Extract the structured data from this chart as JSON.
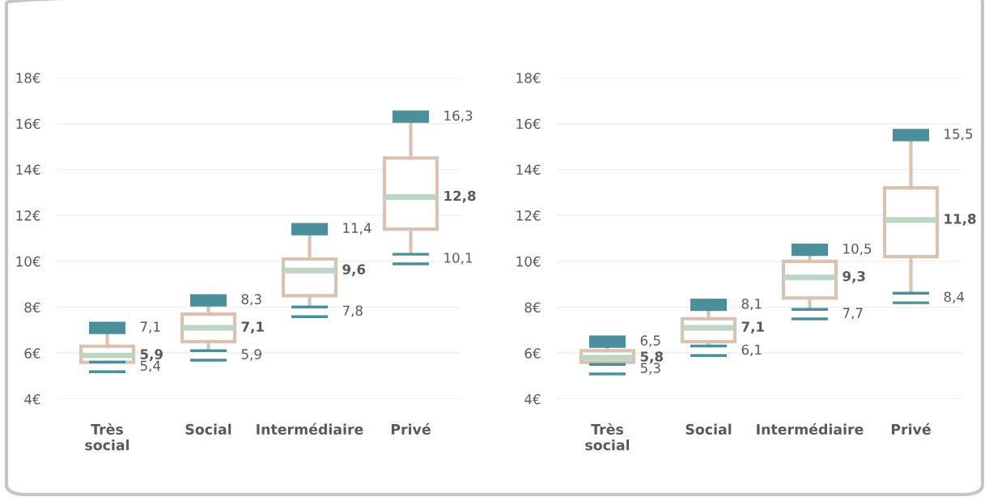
{
  "chart_data": [
    {
      "type": "box",
      "categories": [
        "Très\nsocial",
        "Social",
        "Intermédiaire",
        "Privé"
      ],
      "ylim": [
        4,
        18
      ],
      "yticks": [
        {
          "value": 4,
          "label": "4€"
        },
        {
          "value": 6,
          "label": "6€"
        },
        {
          "value": 8,
          "label": "8€"
        },
        {
          "value": 10,
          "label": "10€"
        },
        {
          "value": 12,
          "label": "12€"
        },
        {
          "value": 14,
          "label": "14€"
        },
        {
          "value": 16,
          "label": "16€"
        },
        {
          "value": 18,
          "label": "18€"
        }
      ],
      "grid": "y",
      "series": [
        {
          "color": "#d9c2b1",
          "boxes": [
            {
              "low": 5.4,
              "q1": 5.6,
              "median": 5.9,
              "q3": 6.3,
              "high": 7.1
            },
            {
              "low": 5.9,
              "q1": 6.5,
              "median": 7.1,
              "q3": 7.7,
              "high": 8.3
            },
            {
              "low": 7.8,
              "q1": 8.5,
              "median": 9.6,
              "q3": 10.1,
              "high": 11.4
            },
            {
              "low": 10.1,
              "q1": 11.4,
              "median": 12.8,
              "q3": 14.5,
              "high": 16.3
            }
          ]
        }
      ],
      "annotations": [
        {
          "text": "7,1",
          "x": "Très\nsocial",
          "y": 7.1
        },
        {
          "text": "5,9",
          "x": "Très\nsocial",
          "y": 5.9
        },
        {
          "text": "5,4",
          "x": "Très\nsocial",
          "y": 5.4
        },
        {
          "text": "8,3",
          "x": "Social",
          "y": 8.3
        },
        {
          "text": "7,1",
          "x": "Social",
          "y": 7.1
        },
        {
          "text": "5,9",
          "x": "Social",
          "y": 5.9
        },
        {
          "text": "11,4",
          "x": "Intermédiaire",
          "y": 11.4
        },
        {
          "text": "9,6",
          "x": "Intermédiaire",
          "y": 9.6
        },
        {
          "text": "7,8",
          "x": "Intermédiaire",
          "y": 7.8
        },
        {
          "text": "16,3",
          "x": "Privé",
          "y": 16.3
        },
        {
          "text": "12,8",
          "x": "Privé",
          "y": 12.8
        },
        {
          "text": "10,1",
          "x": "Privé",
          "y": 10.1
        }
      ]
    },
    {
      "type": "box",
      "categories": [
        "Très\nsocial",
        "Social",
        "Intermédiaire",
        "Privé"
      ],
      "ylim": [
        4,
        18
      ],
      "yticks": [
        {
          "value": 4,
          "label": "4€"
        },
        {
          "value": 6,
          "label": "6€"
        },
        {
          "value": 8,
          "label": "8€"
        },
        {
          "value": 10,
          "label": "10€"
        },
        {
          "value": 12,
          "label": "12€"
        },
        {
          "value": 14,
          "label": "14€"
        },
        {
          "value": 16,
          "label": "16€"
        },
        {
          "value": 18,
          "label": "18€"
        }
      ],
      "grid": "y",
      "series": [
        {
          "color": "#d9c2b1",
          "boxes": [
            {
              "low": 5.3,
              "q1": 5.6,
              "median": 5.8,
              "q3": 6.1,
              "high": 6.5
            },
            {
              "low": 6.1,
              "q1": 6.5,
              "median": 7.1,
              "q3": 7.5,
              "high": 8.1
            },
            {
              "low": 7.7,
              "q1": 8.4,
              "median": 9.3,
              "q3": 10.0,
              "high": 10.5
            },
            {
              "low": 8.4,
              "q1": 10.2,
              "median": 11.8,
              "q3": 13.2,
              "high": 15.5
            }
          ]
        }
      ],
      "annotations": [
        {
          "text": "6,5",
          "x": "Très\nsocial",
          "y": 6.5
        },
        {
          "text": "5,8",
          "x": "Très\nsocial",
          "y": 5.8
        },
        {
          "text": "5,3",
          "x": "Très\nsocial",
          "y": 5.3
        },
        {
          "text": "8,1",
          "x": "Social",
          "y": 8.1
        },
        {
          "text": "7,1",
          "x": "Social",
          "y": 7.1
        },
        {
          "text": "6,1",
          "x": "Social",
          "y": 6.1
        },
        {
          "text": "10,5",
          "x": "Intermédiaire",
          "y": 10.5
        },
        {
          "text": "9,3",
          "x": "Intermédiaire",
          "y": 9.3
        },
        {
          "text": "7,7",
          "x": "Intermédiaire",
          "y": 7.7
        },
        {
          "text": "15,5",
          "x": "Privé",
          "y": 15.5
        },
        {
          "text": "11,8",
          "x": "Privé",
          "y": 11.8
        },
        {
          "text": "8,4",
          "x": "Privé",
          "y": 8.4
        }
      ]
    }
  ]
}
